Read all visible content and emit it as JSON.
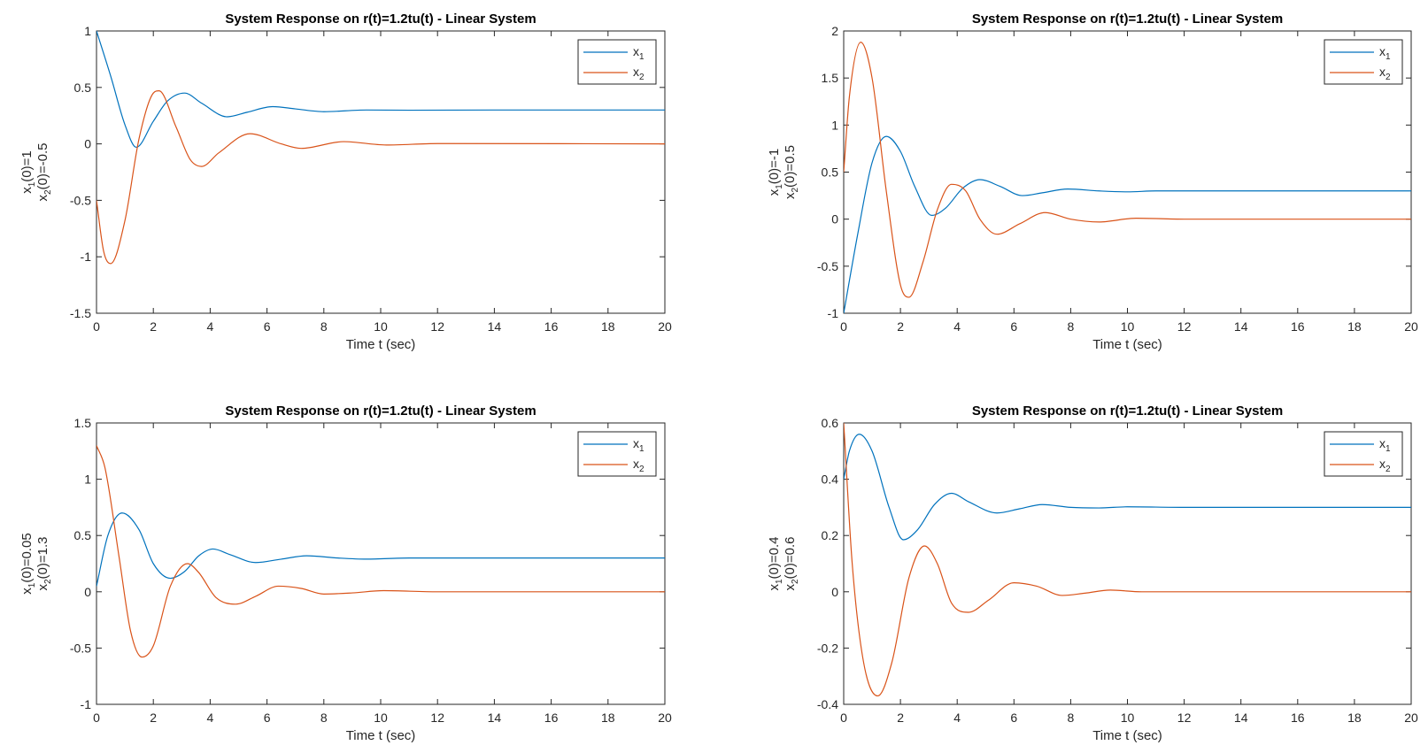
{
  "figure": {
    "panels": [
      {
        "title": "System Response on r(t)=1.2tu(t) - Linear System",
        "xlabel": "Time t (sec)",
        "ylabel_lines": [
          [
            "x",
            "1",
            "(0)=1"
          ],
          [
            "x",
            "2",
            "(0)=-0.5"
          ]
        ]
      },
      {
        "title": "System Response on r(t)=1.2tu(t) - Linear System",
        "xlabel": "Time t (sec)",
        "ylabel_lines": [
          [
            "x",
            "1",
            "(0)=-1"
          ],
          [
            "x",
            "2",
            "(0)=0.5"
          ]
        ]
      },
      {
        "title": "System Response on r(t)=1.2tu(t) - Linear System",
        "xlabel": "Time t (sec)",
        "ylabel_lines": [
          [
            "x",
            "1",
            "(0)=0.05"
          ],
          [
            "x",
            "2",
            "(0)=1.3"
          ]
        ]
      },
      {
        "title": "System Response on r(t)=1.2tu(t) - Linear System",
        "xlabel": "Time t (sec)",
        "ylabel_lines": [
          [
            "x",
            "1",
            "(0)=0.4"
          ],
          [
            "x",
            "2",
            "(0)=0.6"
          ]
        ]
      }
    ]
  },
  "chart_data": [
    {
      "type": "line",
      "title": "System Response on r(t)=1.2tu(t) - Linear System",
      "xlabel": "Time t (sec)",
      "ylabel": "x1(0)=1 x2(0)=-0.5",
      "xlim": [
        0,
        20
      ],
      "ylim": [
        -1.5,
        1
      ],
      "xticks": [
        0,
        2,
        4,
        6,
        8,
        10,
        12,
        14,
        16,
        18,
        20
      ],
      "yticks": [
        -1.5,
        -1,
        -0.5,
        0,
        0.5,
        1
      ],
      "ytick_labels": [
        "-1.5",
        "-1",
        "-0.5",
        "0",
        "0.5",
        "1"
      ],
      "grid": false,
      "legend": "top-right",
      "series": [
        {
          "name": "x1",
          "color": "#0072BD",
          "x": [
            0,
            0.5,
            1,
            1.4,
            2,
            2.5,
            3.1,
            3.7,
            4.6,
            5.3,
            6.2,
            7,
            8,
            9.5,
            11,
            14,
            20
          ],
          "y": [
            1,
            0.6,
            0.17,
            -0.03,
            0.2,
            0.38,
            0.45,
            0.36,
            0.24,
            0.28,
            0.33,
            0.31,
            0.285,
            0.3,
            0.298,
            0.3,
            0.3
          ]
        },
        {
          "name": "x2",
          "color": "#D95319",
          "x": [
            0,
            0.25,
            0.5,
            1,
            1.5,
            2,
            2.2,
            2.8,
            3.3,
            3.7,
            4.3,
            5.4,
            6.5,
            7.2,
            8.7,
            10.2,
            12,
            20
          ],
          "y": [
            -0.5,
            -0.95,
            -1.06,
            -0.68,
            0.05,
            0.45,
            0.47,
            0.15,
            -0.14,
            -0.2,
            -0.08,
            0.09,
            0.0,
            -0.04,
            0.02,
            -0.01,
            0.003,
            0
          ]
        }
      ]
    },
    {
      "type": "line",
      "title": "System Response on r(t)=1.2tu(t) - Linear System",
      "xlabel": "Time t (sec)",
      "ylabel": "x1(0)=-1 x2(0)=0.5",
      "xlim": [
        0,
        20
      ],
      "ylim": [
        -1,
        2
      ],
      "xticks": [
        0,
        2,
        4,
        6,
        8,
        10,
        12,
        14,
        16,
        18,
        20
      ],
      "yticks": [
        -1,
        -0.5,
        0,
        0.5,
        1,
        1.5,
        2
      ],
      "ytick_labels": [
        "-1",
        "-0.5",
        "0",
        "0.5",
        "1",
        "1.5",
        "2"
      ],
      "grid": false,
      "legend": "top-right",
      "series": [
        {
          "name": "x1",
          "color": "#0072BD",
          "x": [
            0,
            0.5,
            1,
            1.5,
            2,
            2.5,
            3.1,
            3.6,
            4.2,
            4.8,
            5.5,
            6.3,
            7,
            7.9,
            9,
            10,
            11,
            14,
            20
          ],
          "y": [
            -1,
            -0.15,
            0.6,
            0.88,
            0.72,
            0.35,
            0.04,
            0.12,
            0.33,
            0.42,
            0.35,
            0.25,
            0.28,
            0.32,
            0.3,
            0.29,
            0.3,
            0.3,
            0.3
          ]
        },
        {
          "name": "x2",
          "color": "#D95319",
          "x": [
            0,
            0.2,
            0.6,
            1,
            1.5,
            2,
            2.3,
            2.8,
            3.3,
            3.8,
            4.3,
            4.8,
            5.4,
            6.2,
            7.1,
            8,
            9,
            10.3,
            12,
            20
          ],
          "y": [
            0.5,
            1.3,
            1.88,
            1.5,
            0.3,
            -0.7,
            -0.83,
            -0.45,
            0.1,
            0.37,
            0.3,
            0.0,
            -0.16,
            -0.05,
            0.07,
            0.0,
            -0.03,
            0.01,
            0.0,
            0
          ]
        }
      ]
    },
    {
      "type": "line",
      "title": "System Response on r(t)=1.2tu(t) - Linear System",
      "xlabel": "Time t (sec)",
      "ylabel": "x1(0)=0.05 x2(0)=1.3",
      "xlim": [
        0,
        20
      ],
      "ylim": [
        -1,
        1.5
      ],
      "xticks": [
        0,
        2,
        4,
        6,
        8,
        10,
        12,
        14,
        16,
        18,
        20
      ],
      "yticks": [
        -1,
        -0.5,
        0,
        0.5,
        1,
        1.5
      ],
      "ytick_labels": [
        "-1",
        "-0.5",
        "0",
        "0.5",
        "1",
        "1.5"
      ],
      "grid": false,
      "legend": "top-right",
      "series": [
        {
          "name": "x1",
          "color": "#0072BD",
          "x": [
            0,
            0.4,
            0.9,
            1.5,
            2,
            2.6,
            3.1,
            3.6,
            4.1,
            4.7,
            5.6,
            6.5,
            7.4,
            8.5,
            9.5,
            11,
            14,
            20
          ],
          "y": [
            0.05,
            0.5,
            0.7,
            0.55,
            0.25,
            0.12,
            0.18,
            0.32,
            0.38,
            0.33,
            0.26,
            0.29,
            0.32,
            0.3,
            0.29,
            0.3,
            0.3,
            0.3
          ]
        },
        {
          "name": "x2",
          "color": "#D95319",
          "x": [
            0,
            0.3,
            0.8,
            1.2,
            1.6,
            2,
            2.6,
            3.2,
            3.6,
            4.2,
            4.9,
            5.6,
            6.4,
            7.2,
            8,
            9,
            10.1,
            12,
            20
          ],
          "y": [
            1.3,
            1.1,
            0.3,
            -0.35,
            -0.58,
            -0.48,
            0.05,
            0.25,
            0.17,
            -0.05,
            -0.11,
            -0.04,
            0.05,
            0.03,
            -0.02,
            -0.01,
            0.01,
            0.0,
            0
          ]
        }
      ]
    },
    {
      "type": "line",
      "title": "System Response on r(t)=1.2tu(t) - Linear System",
      "xlabel": "Time t (sec)",
      "ylabel": "x1(0)=0.4 x2(0)=0.6",
      "xlim": [
        0,
        20
      ],
      "ylim": [
        -0.4,
        0.6
      ],
      "xticks": [
        0,
        2,
        4,
        6,
        8,
        10,
        12,
        14,
        16,
        18,
        20
      ],
      "yticks": [
        -0.4,
        -0.2,
        0,
        0.2,
        0.4,
        0.6
      ],
      "ytick_labels": [
        "-0.4",
        "-0.2",
        "0",
        "0.2",
        "0.4",
        "0.6"
      ],
      "grid": false,
      "legend": "top-right",
      "series": [
        {
          "name": "x1",
          "color": "#0072BD",
          "x": [
            0,
            0.2,
            0.55,
            1,
            1.6,
            2.1,
            2.6,
            3.2,
            3.8,
            4.4,
            5.4,
            6.2,
            7,
            8,
            9,
            10,
            12,
            20
          ],
          "y": [
            0.4,
            0.5,
            0.56,
            0.5,
            0.3,
            0.185,
            0.22,
            0.31,
            0.35,
            0.32,
            0.28,
            0.295,
            0.31,
            0.3,
            0.298,
            0.302,
            0.3,
            0.3
          ]
        },
        {
          "name": "x2",
          "color": "#D95319",
          "x": [
            0,
            0.3,
            0.7,
            1.2,
            1.7,
            2.3,
            2.85,
            3.3,
            3.8,
            4.4,
            5.1,
            6,
            6.8,
            7.7,
            8.5,
            9.4,
            10.5,
            12,
            20
          ],
          "y": [
            0.6,
            0.1,
            -0.25,
            -0.37,
            -0.25,
            0.05,
            0.163,
            0.1,
            -0.04,
            -0.073,
            -0.03,
            0.032,
            0.02,
            -0.013,
            -0.005,
            0.006,
            0.0,
            0.0,
            0
          ]
        }
      ]
    }
  ]
}
